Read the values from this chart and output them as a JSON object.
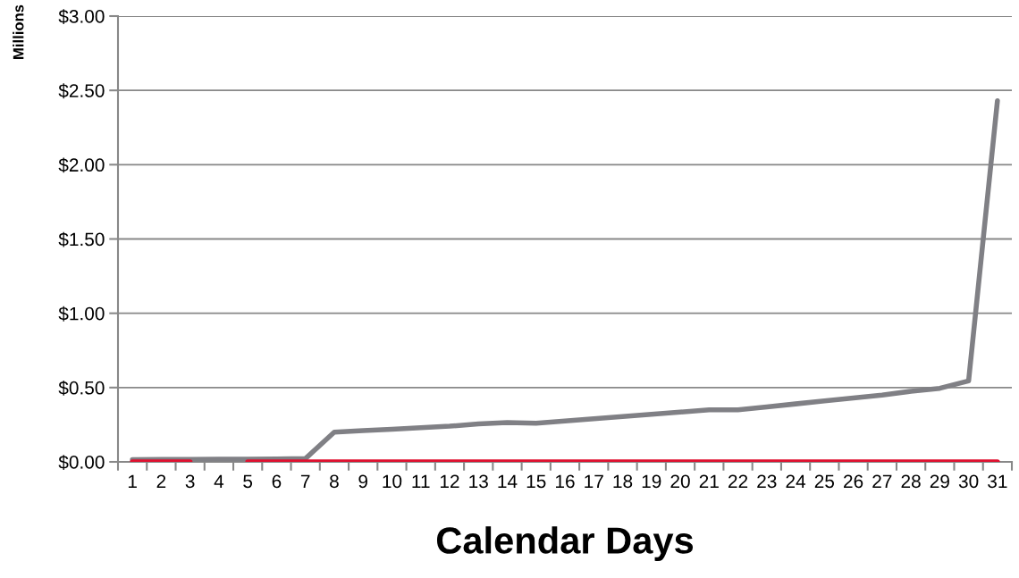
{
  "chart_data": {
    "type": "line",
    "xlabel": "Calendar Days",
    "ylabel": "Millions",
    "categories": [
      "1",
      "2",
      "3",
      "4",
      "5",
      "6",
      "7",
      "8",
      "9",
      "10",
      "11",
      "12",
      "13",
      "14",
      "15",
      "16",
      "17",
      "18",
      "19",
      "20",
      "21",
      "22",
      "23",
      "24",
      "25",
      "26",
      "27",
      "28",
      "29",
      "30",
      "31"
    ],
    "series": [
      {
        "color": "#808085",
        "values": [
          0.015,
          0.017,
          0.017,
          0.018,
          0.018,
          0.02,
          0.022,
          0.2,
          0.21,
          0.22,
          0.23,
          0.24,
          0.255,
          0.265,
          0.26,
          0.275,
          0.29,
          0.305,
          0.32,
          0.335,
          0.35,
          0.35,
          0.37,
          0.39,
          0.41,
          0.43,
          0.45,
          0.475,
          0.495,
          0.545,
          2.43
        ]
      },
      {
        "color": "#e0102f",
        "values": [
          0,
          0,
          0,
          null,
          0,
          0,
          0,
          0,
          0,
          0,
          0,
          0,
          0,
          0,
          0,
          0,
          0,
          0,
          0,
          0,
          0,
          0,
          0,
          0,
          0,
          0,
          0,
          0,
          0,
          0,
          0
        ]
      }
    ],
    "ylim": [
      0,
      3
    ],
    "yticks": [
      {
        "value": 0,
        "label": "$0.00"
      },
      {
        "value": 0.5,
        "label": "$0.50"
      },
      {
        "value": 1,
        "label": "$1.00"
      },
      {
        "value": 1.5,
        "label": "$1.50"
      },
      {
        "value": 2,
        "label": "$2.00"
      },
      {
        "value": 2.5,
        "label": "$2.50"
      },
      {
        "value": 3,
        "label": "$3.00"
      }
    ],
    "grid": "y",
    "marker": "none",
    "line_style": "solid"
  }
}
